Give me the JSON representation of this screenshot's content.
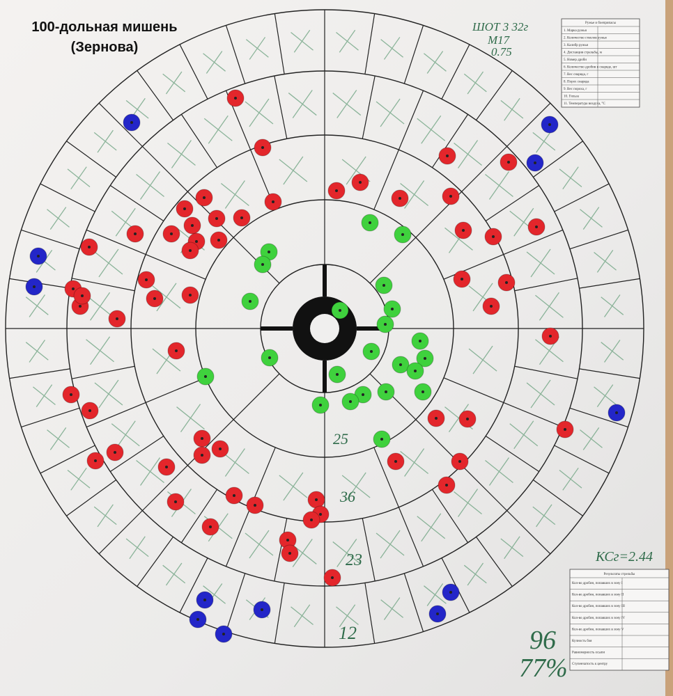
{
  "header": {
    "title": "100-дольная мишень",
    "subtitle": "(Зернова)"
  },
  "annotations": {
    "shot": "ШОТ 3 32г",
    "load": "М17",
    "choke": "0.75",
    "ring_2": "25",
    "ring_3": "36",
    "ring_4": "23",
    "ring_5": "12",
    "coefficient": "КСг=2.44",
    "total": "96",
    "percent": "77%"
  },
  "gun_table": {
    "title": "Ружье и боеприпасы",
    "rows": [
      "1. Марка ружья",
      "2. Количество стволов ружья",
      "3. Калибр ружья",
      "4. Дистанция стрельбы, м",
      "5. Номер дроби",
      "6. Количество дробин в снаряде, шт",
      "7. Вес снаряда, г",
      "8. Порох снаряда",
      "9. Вес пороха, г",
      "10. Гильза",
      "11. Температура воздуха, °С"
    ]
  },
  "results_table": {
    "title": "Результаты стрельбы",
    "rows": [
      "Кол-во дробин, попавших в зону I",
      "Кол-во дробин, попавших в зону II",
      "Кол-во дробин, попавших в зону III",
      "Кол-во дробин, попавших в зону IV",
      "Кол-во дробин, попавших в зону V",
      "Кучность боя",
      "Равномерность осыпи",
      "Ступенчатость к центру"
    ]
  }
}
